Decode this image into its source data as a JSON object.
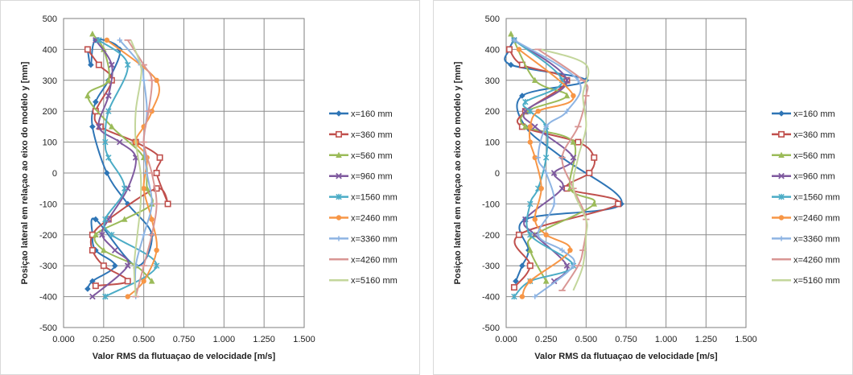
{
  "chart_data": [
    {
      "type": "line",
      "xlabel": "Valor RMS da flutuaçao de velocidade [m/s]",
      "ylabel": "Posiçao lateral em relaçao ao eixo do modelo y [mm]",
      "xlim": [
        0,
        1.5
      ],
      "ylim": [
        -500,
        500
      ],
      "x_ticks": [
        "0.000",
        "0.250",
        "0.500",
        "0.750",
        "1.000",
        "1.250",
        "1.500"
      ],
      "y_ticks": [
        "500",
        "400",
        "300",
        "200",
        "100",
        "0",
        "-100",
        "-200",
        "-300",
        "-400",
        "-500"
      ],
      "grid": true,
      "legend_position": "right",
      "series": [
        {
          "name": "x=160 mm",
          "color": "#2e75b6",
          "marker": "diamond",
          "x": [
            0.15,
            0.17,
            0.2,
            0.35,
            0.28,
            0.2,
            0.18,
            0.27,
            0.4,
            0.55,
            0.45,
            0.2,
            0.18,
            0.2,
            0.32,
            0.18,
            0.15
          ],
          "y": [
            400,
            350,
            430,
            400,
            300,
            230,
            150,
            0,
            -100,
            -200,
            -300,
            -150,
            -200,
            -250,
            -300,
            -350,
            -375
          ]
        },
        {
          "name": "x=360 mm",
          "color": "#c0504d",
          "marker": "square",
          "x": [
            0.15,
            0.22,
            0.3,
            0.2,
            0.23,
            0.45,
            0.6,
            0.58,
            0.65,
            0.58,
            0.28,
            0.18,
            0.18,
            0.25,
            0.4,
            0.2
          ],
          "y": [
            400,
            350,
            300,
            200,
            150,
            100,
            50,
            0,
            -100,
            -50,
            -150,
            -200,
            -250,
            -300,
            -350,
            -365
          ]
        },
        {
          "name": "x=560 mm",
          "color": "#9bbb59",
          "marker": "triangle",
          "x": [
            0.18,
            0.25,
            0.28,
            0.15,
            0.3,
            0.5,
            0.52,
            0.55,
            0.38,
            0.2,
            0.25,
            0.45,
            0.55
          ],
          "y": [
            450,
            400,
            300,
            250,
            150,
            50,
            -50,
            -100,
            -150,
            -200,
            -250,
            -300,
            -350
          ]
        },
        {
          "name": "x=960 mm",
          "color": "#7f5a9f",
          "marker": "x",
          "x": [
            0.2,
            0.3,
            0.28,
            0.22,
            0.35,
            0.45,
            0.4,
            0.28,
            0.24,
            0.32,
            0.4,
            0.18
          ],
          "y": [
            430,
            350,
            250,
            150,
            100,
            50,
            -50,
            -150,
            -200,
            -250,
            -300,
            -400
          ]
        },
        {
          "name": "x=1560 mm",
          "color": "#4bacc6",
          "marker": "star",
          "x": [
            0.22,
            0.4,
            0.28,
            0.26,
            0.28,
            0.38,
            0.26,
            0.3,
            0.58,
            0.26
          ],
          "y": [
            430,
            350,
            200,
            100,
            50,
            -50,
            -150,
            -200,
            -300,
            -400
          ]
        },
        {
          "name": "x=2460 mm",
          "color": "#f79646",
          "marker": "circle",
          "x": [
            0.27,
            0.58,
            0.55,
            0.5,
            0.45,
            0.52,
            0.5,
            0.55,
            0.58,
            0.5,
            0.4
          ],
          "y": [
            430,
            300,
            200,
            150,
            100,
            50,
            -50,
            -150,
            -250,
            -350,
            -400
          ]
        },
        {
          "name": "x=3360 mm",
          "color": "#8eb4e3",
          "marker": "plus",
          "x": [
            0.35,
            0.48,
            0.5,
            0.52,
            0.5,
            0.52,
            0.55,
            0.5,
            0.45,
            0.45
          ],
          "y": [
            430,
            350,
            300,
            200,
            100,
            0,
            -100,
            -200,
            -300,
            -400
          ]
        },
        {
          "name": "x=4260 mm",
          "color": "#d99694",
          "marker": "dash",
          "x": [
            0.4,
            0.5,
            0.55,
            0.53,
            0.5,
            0.55,
            0.58,
            0.55,
            0.5,
            0.45
          ],
          "y": [
            430,
            350,
            300,
            200,
            100,
            0,
            -100,
            -200,
            -300,
            -400
          ]
        },
        {
          "name": "x=5160 mm",
          "color": "#c3d69b",
          "marker": "line",
          "x": [
            0.42,
            0.48,
            0.48,
            0.45,
            0.45,
            0.48,
            0.48,
            0.46,
            0.44,
            0.45
          ],
          "y": [
            430,
            350,
            300,
            200,
            100,
            0,
            -100,
            -200,
            -300,
            -400
          ]
        }
      ]
    },
    {
      "type": "line",
      "xlabel": "Valor RMS da flutuaçao de velocidade [m/s]",
      "ylabel": "Posiçao lateral em relaçao ao eixo do modelo y [mm]",
      "xlim": [
        0,
        1.5
      ],
      "ylim": [
        -500,
        500
      ],
      "x_ticks": [
        "0.000",
        "0.250",
        "0.500",
        "0.750",
        "1.000",
        "1.250",
        "1.500"
      ],
      "y_ticks": [
        "500",
        "400",
        "300",
        "200",
        "100",
        "0",
        "-100",
        "-200",
        "-300",
        "-400",
        "-500"
      ],
      "grid": true,
      "legend_position": "right",
      "series": [
        {
          "name": "x=160 mm",
          "color": "#2e75b6",
          "marker": "diamond",
          "x": [
            0.05,
            0.02,
            0.03,
            0.5,
            0.1,
            0.12,
            0.35,
            0.72,
            0.12,
            0.14,
            0.1,
            0.06
          ],
          "y": [
            430,
            400,
            350,
            300,
            250,
            150,
            50,
            -100,
            -150,
            -250,
            -300,
            -350
          ]
        },
        {
          "name": "x=360 mm",
          "color": "#c0504d",
          "marker": "square",
          "x": [
            0.02,
            0.1,
            0.38,
            0.12,
            0.1,
            0.45,
            0.55,
            0.52,
            0.38,
            0.7,
            0.08,
            0.15,
            0.05
          ],
          "y": [
            400,
            350,
            300,
            200,
            150,
            100,
            50,
            0,
            -50,
            -100,
            -200,
            -300,
            -370
          ]
        },
        {
          "name": "x=560 mm",
          "color": "#9bbb59",
          "marker": "triangle",
          "x": [
            0.03,
            0.18,
            0.38,
            0.13,
            0.12,
            0.42,
            0.4,
            0.55,
            0.18,
            0.15,
            0.25
          ],
          "y": [
            450,
            300,
            250,
            200,
            150,
            100,
            -50,
            -100,
            -200,
            -250,
            -350
          ]
        },
        {
          "name": "x=960 mm",
          "color": "#7f5a9f",
          "marker": "x",
          "x": [
            0.05,
            0.38,
            0.12,
            0.18,
            0.42,
            0.3,
            0.35,
            0.12,
            0.18,
            0.38,
            0.3
          ],
          "y": [
            430,
            300,
            200,
            150,
            50,
            0,
            -50,
            -150,
            -200,
            -300,
            -350
          ]
        },
        {
          "name": "x=1560 mm",
          "color": "#4bacc6",
          "marker": "star",
          "x": [
            0.05,
            0.35,
            0.12,
            0.15,
            0.25,
            0.25,
            0.2,
            0.15,
            0.15,
            0.42,
            0.15,
            0.05
          ],
          "y": [
            430,
            300,
            230,
            200,
            150,
            50,
            -50,
            -100,
            -200,
            -300,
            -350,
            -400
          ]
        },
        {
          "name": "x=2460 mm",
          "color": "#f79646",
          "marker": "circle",
          "x": [
            0.08,
            0.42,
            0.2,
            0.15,
            0.15,
            0.18,
            0.22,
            0.18,
            0.25,
            0.4,
            0.15,
            0.1
          ],
          "y": [
            400,
            250,
            200,
            150,
            100,
            50,
            -50,
            -150,
            -200,
            -250,
            -350,
            -400
          ]
        },
        {
          "name": "x=3360 mm",
          "color": "#8eb4e3",
          "marker": "plus",
          "x": [
            0.05,
            0.45,
            0.38,
            0.25,
            0.2,
            0.25,
            0.3,
            0.2,
            0.35,
            0.42,
            0.18
          ],
          "y": [
            430,
            300,
            200,
            150,
            50,
            0,
            -100,
            -200,
            -250,
            -300,
            -400
          ]
        },
        {
          "name": "x=4260 mm",
          "color": "#d99694",
          "marker": "dash",
          "x": [
            0.2,
            0.48,
            0.5,
            0.45,
            0.35,
            0.42,
            0.5,
            0.48,
            0.45,
            0.35
          ],
          "y": [
            400,
            300,
            250,
            150,
            50,
            -50,
            -150,
            -250,
            -300,
            -380
          ]
        },
        {
          "name": "x=5160 mm",
          "color": "#c3d69b",
          "marker": "line",
          "x": [
            0.22,
            0.5,
            0.48,
            0.5,
            0.45,
            0.42,
            0.5,
            0.5,
            0.48,
            0.42
          ],
          "y": [
            400,
            350,
            250,
            150,
            50,
            -50,
            -150,
            -200,
            -300,
            -380
          ]
        }
      ]
    }
  ]
}
